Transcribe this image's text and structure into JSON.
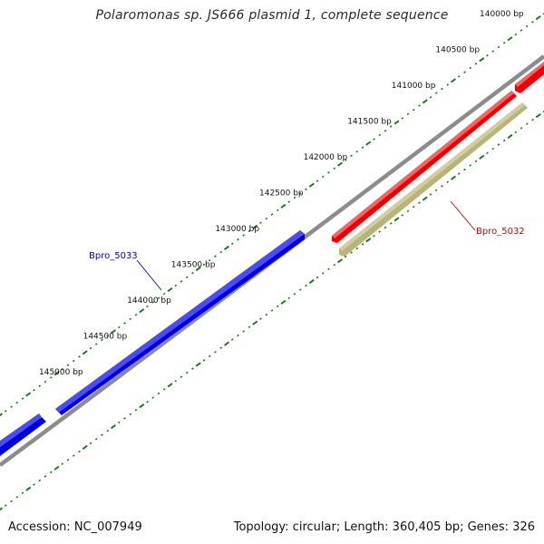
{
  "title": "Polaromonas sp. JS666 plasmid 1, complete sequence",
  "footer": {
    "accession": "Accession: NC_007949",
    "summary": "Topology: circular; Length: 360,405 bp; Genes: 326"
  },
  "colors": {
    "backbone": "#8c8c8c",
    "tick": "#1e7a1e",
    "gene_forward": "#0000dd",
    "gene_reverse": "#ee0000",
    "gene_rna": "#b8b37a",
    "label_forward": "#0000cc",
    "label_reverse": "#cc0000"
  },
  "ruler": {
    "labels": [
      "140000 bp",
      "140500 bp",
      "141000 bp",
      "141500 bp",
      "142000 bp",
      "142500 bp",
      "143000 bp",
      "143500 bp",
      "144000 bp",
      "144500 bp",
      "145000 bp"
    ]
  },
  "genes": {
    "forward_label": "Bpro_5033",
    "reverse_label": "Bpro_5032"
  }
}
